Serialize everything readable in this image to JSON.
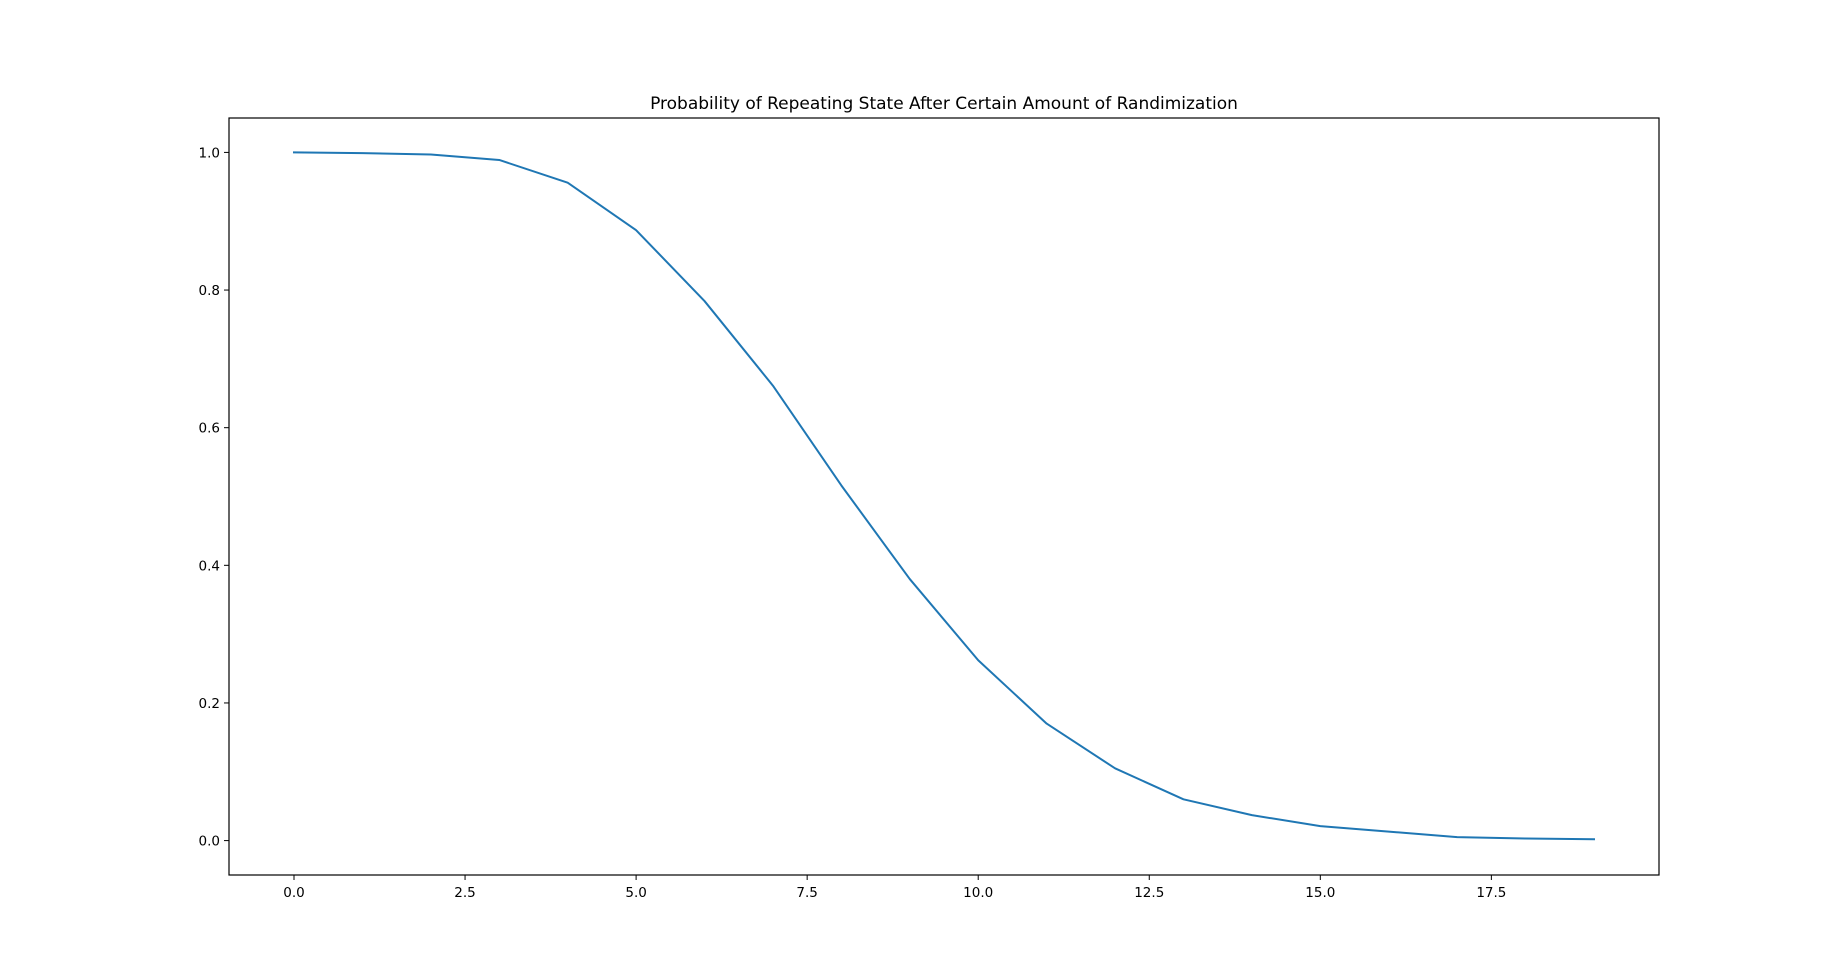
{
  "chart_data": {
    "type": "line",
    "title": "Probability of Repeating State After Certain Amount of Randimization",
    "xlabel": "",
    "ylabel": "",
    "xlim": [
      -0.95,
      19.95
    ],
    "ylim": [
      -0.05,
      1.05
    ],
    "x_ticks": [
      0.0,
      2.5,
      5.0,
      7.5,
      10.0,
      12.5,
      15.0,
      17.5
    ],
    "x_tick_labels": [
      "0.0",
      "2.5",
      "5.0",
      "7.5",
      "10.0",
      "12.5",
      "15.0",
      "17.5"
    ],
    "y_ticks": [
      0.0,
      0.2,
      0.4,
      0.6,
      0.8,
      1.0
    ],
    "y_tick_labels": [
      "0.0",
      "0.2",
      "0.4",
      "0.6",
      "0.8",
      "1.0"
    ],
    "grid": false,
    "series": [
      {
        "color": "#1f77b4",
        "x": [
          0,
          1,
          2,
          3,
          4,
          5,
          6,
          7,
          8,
          9,
          10,
          11,
          12,
          13,
          14,
          15,
          16,
          17,
          18,
          19
        ],
        "y": [
          1.0,
          0.999,
          0.997,
          0.989,
          0.956,
          0.887,
          0.784,
          0.661,
          0.516,
          0.38,
          0.262,
          0.17,
          0.105,
          0.06,
          0.037,
          0.021,
          0.013,
          0.005,
          0.003,
          0.002
        ]
      }
    ]
  }
}
